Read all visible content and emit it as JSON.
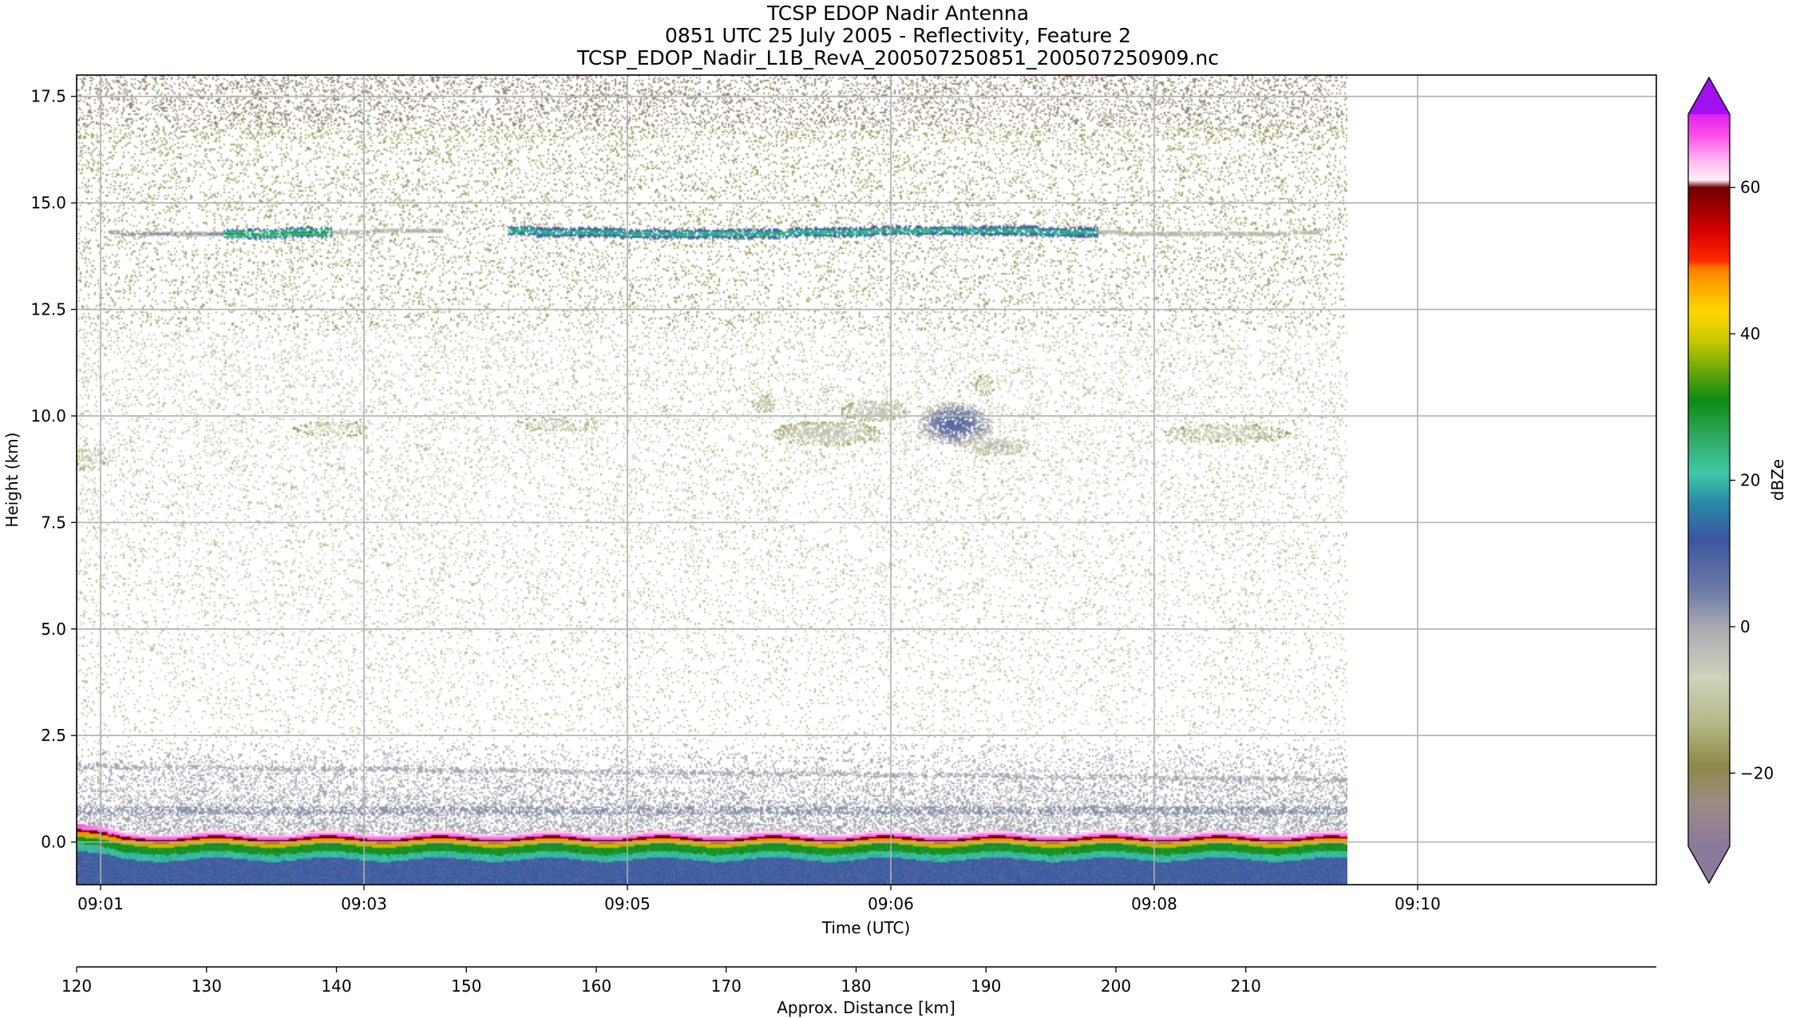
{
  "title_lines": [
    "TCSP EDOP Nadir Antenna",
    "0851 UTC 25 July 2005 - Reflectivity, Feature 2",
    "TCSP_EDOP_Nadir_L1B_RevA_200507250851_200507250909.nc"
  ],
  "chart_data": {
    "type": "heatmap",
    "xlabel": "Time (UTC)",
    "ylabel": "Height (km)",
    "x_ticks": [
      "09:01",
      "09:03",
      "09:05",
      "09:06",
      "09:08",
      "09:10"
    ],
    "y_ticks": [
      0.0,
      2.5,
      5.0,
      7.5,
      10.0,
      12.5,
      15.0,
      17.5
    ],
    "y_tick_labels": [
      "0.0",
      "2.5",
      "5.0",
      "7.5",
      "10.0",
      "12.5",
      "15.0",
      "17.5"
    ],
    "ylim": [
      -1.0,
      18.0
    ],
    "grid": true,
    "distance_axis": {
      "label": "Approx. Distance [km]",
      "ticks": [
        120,
        130,
        140,
        150,
        160,
        170,
        180,
        190,
        200,
        210
      ],
      "range": [
        120,
        241.6
      ]
    },
    "colorbar": {
      "label": "dBZe",
      "ticks": [
        60,
        40,
        20,
        0,
        -20
      ],
      "tick_labels": [
        "60",
        "40",
        "20",
        "0",
        "−20"
      ],
      "range": [
        -30,
        70
      ],
      "extend": "both",
      "stops": [
        {
          "v": -30,
          "c": "#8a7a9c"
        },
        {
          "v": -24,
          "c": "#9b8a82"
        },
        {
          "v": -19,
          "c": "#8c8a48"
        },
        {
          "v": -13,
          "c": "#b6b98a"
        },
        {
          "v": -7,
          "c": "#cfd2bd"
        },
        {
          "v": 0,
          "c": "#a8aab2"
        },
        {
          "v": 5,
          "c": "#6d7aa8"
        },
        {
          "v": 12,
          "c": "#3a56a0"
        },
        {
          "v": 17,
          "c": "#2a8aa8"
        },
        {
          "v": 21,
          "c": "#40c8a8"
        },
        {
          "v": 26,
          "c": "#30a860"
        },
        {
          "v": 31,
          "c": "#0e8a14"
        },
        {
          "v": 35,
          "c": "#6aa80a"
        },
        {
          "v": 39,
          "c": "#c8c800"
        },
        {
          "v": 43,
          "c": "#ffd800"
        },
        {
          "v": 47,
          "c": "#ffa000"
        },
        {
          "v": 49,
          "c": "#ff7800"
        },
        {
          "v": 50,
          "c": "#ff2a00"
        },
        {
          "v": 54,
          "c": "#d80000"
        },
        {
          "v": 57,
          "c": "#a00000"
        },
        {
          "v": 60,
          "c": "#700000"
        },
        {
          "v": 61,
          "c": "#fff0f8"
        },
        {
          "v": 64,
          "c": "#ffb0f0"
        },
        {
          "v": 67,
          "c": "#ff50e8"
        },
        {
          "v": 70,
          "c": "#e020f0"
        }
      ],
      "extend_low_color": "#8a7a9c",
      "extend_high_color": "#a010f0"
    },
    "features": [
      {
        "name": "surface return",
        "height_km": 0.0,
        "peak_dbze": 65
      },
      {
        "name": "cirrus layer",
        "height_km": 14.3,
        "peak_dbze": 25
      },
      {
        "name": "cloud patch",
        "height_km": 9.8,
        "peak_dbze": 5
      }
    ]
  }
}
